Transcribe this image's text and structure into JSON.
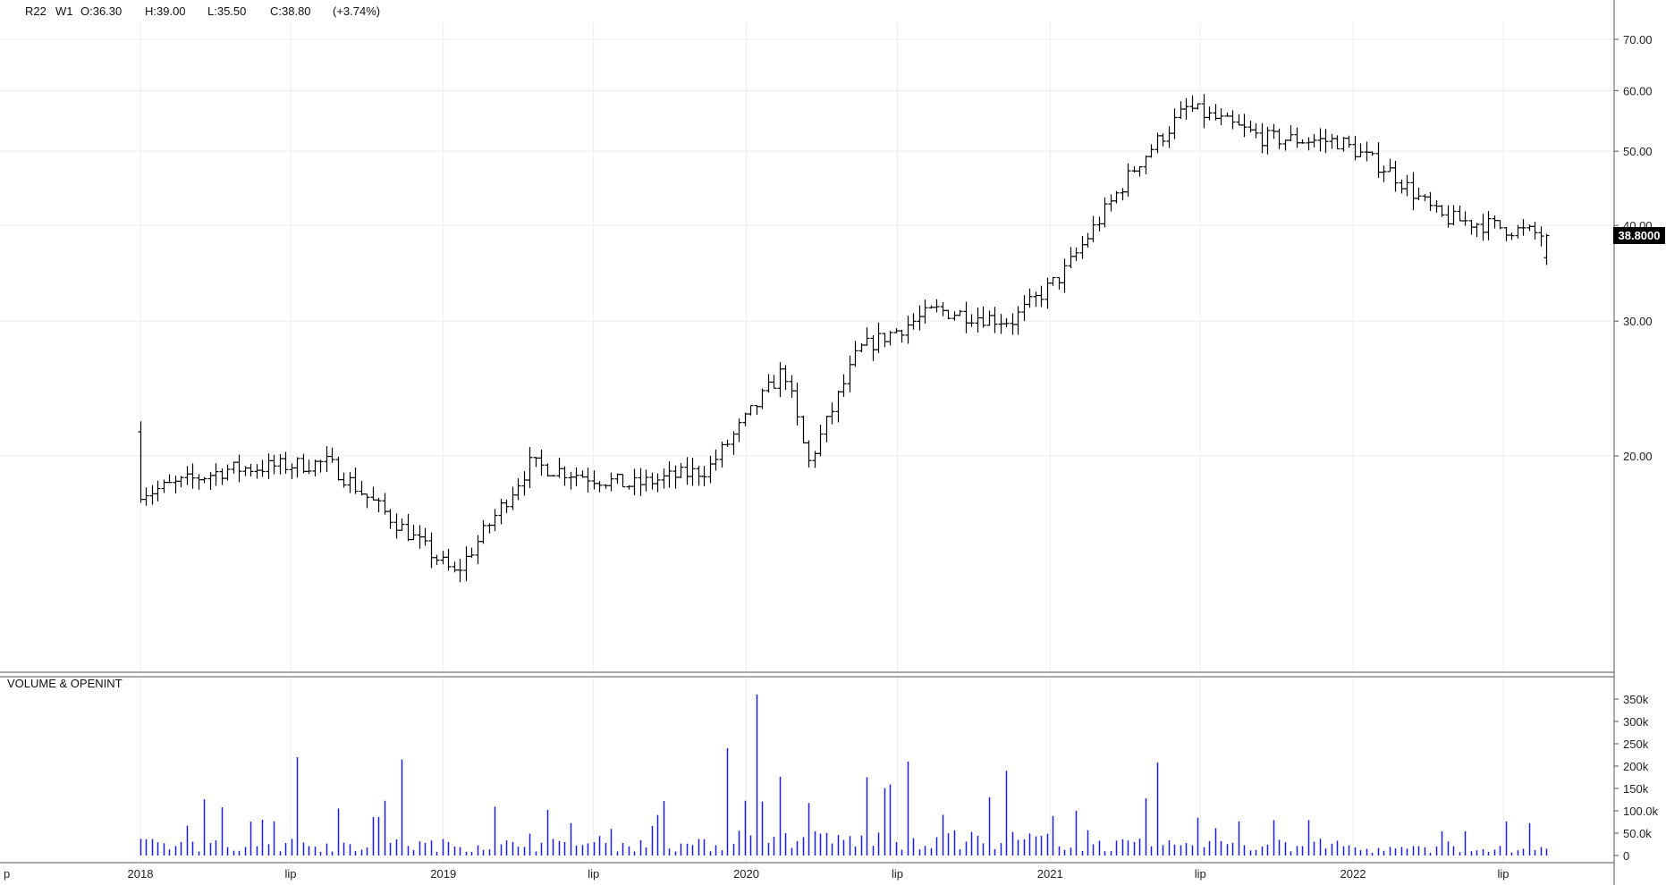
{
  "header": {
    "symbol": "R22",
    "timeframe": "W1",
    "open": "O:36.30",
    "high": "H:39.00",
    "low": "L:35.50",
    "close": "C:38.80",
    "change": "(+3.74%)"
  },
  "volume_panel": {
    "title": "VOLUME & OPENINT"
  },
  "last_price_label": "38.8000",
  "colors": {
    "bars": "#000000",
    "volume": "#1a1aff",
    "grid": "#ececec",
    "border": "#555555",
    "price_tag_bg": "#000000",
    "price_tag_text": "#ffffff"
  },
  "chart_data": [
    {
      "type": "ohlc",
      "title": "",
      "scale": "log",
      "ylim": [
        12,
        72
      ],
      "y_ticks": [
        "70.00",
        "60.00",
        "50.00",
        "40.00",
        "30.00",
        "20.00"
      ],
      "x_ticks": [
        "p",
        "2018",
        "lip",
        "2019",
        "lip",
        "2020",
        "lip",
        "2021",
        "lip",
        "2022",
        "lip"
      ],
      "key_points": [
        {
          "date": "2018-01",
          "close": 18.0
        },
        {
          "date": "2018-04",
          "close": 19.2
        },
        {
          "date": "2018-08",
          "close": 19.6
        },
        {
          "date": "2018-11",
          "close": 16.0
        },
        {
          "date": "2019-01",
          "close": 14.0
        },
        {
          "date": "2019-04",
          "close": 19.5
        },
        {
          "date": "2019-08",
          "close": 18.3
        },
        {
          "date": "2019-11",
          "close": 19.2
        },
        {
          "date": "2020-02",
          "close": 26.0
        },
        {
          "date": "2020-03",
          "close": 19.5
        },
        {
          "date": "2020-05",
          "close": 27.5
        },
        {
          "date": "2020-08",
          "close": 31.0
        },
        {
          "date": "2020-11",
          "close": 30.0
        },
        {
          "date": "2021-01",
          "close": 34.5
        },
        {
          "date": "2021-04",
          "close": 48.0
        },
        {
          "date": "2021-06",
          "close": 57.0
        },
        {
          "date": "2021-09",
          "close": 52.0
        },
        {
          "date": "2021-12",
          "close": 51.5
        },
        {
          "date": "2022-02",
          "close": 47.0
        },
        {
          "date": "2022-04",
          "close": 41.0
        },
        {
          "date": "2022-06",
          "close": 40.0
        },
        {
          "date": "2022-08",
          "close": 38.8
        }
      ]
    },
    {
      "type": "bar",
      "title": "VOLUME & OPENINT",
      "ylim": [
        0,
        360000
      ],
      "y_ticks": [
        "350k",
        "300k",
        "250k",
        "200k",
        "150k",
        "100.0k",
        "50.0k",
        "0"
      ],
      "peaks": [
        {
          "date": "2018-07",
          "volume": 220000
        },
        {
          "date": "2018-11",
          "volume": 215000
        },
        {
          "date": "2019-12",
          "volume": 240000
        },
        {
          "date": "2020-01",
          "volume": 360000
        },
        {
          "date": "2020-07",
          "volume": 210000
        },
        {
          "date": "2021-05",
          "volume": 208000
        }
      ]
    }
  ]
}
